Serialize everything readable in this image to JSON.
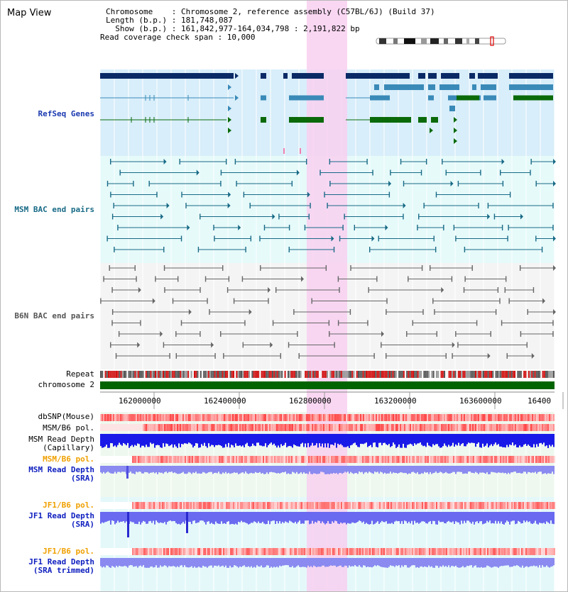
{
  "app": {
    "title": "Map View"
  },
  "info": {
    "chromosome_line": "Chromosome    : Chromosome 2, reference assembly (C57BL/6J) (Build 37)",
    "length_line": "Length (b.p.) : 181,748,087",
    "show_line": "  Show (b.p.) : 161,842,977-164,034,798 : 2,191,822 bp",
    "coverage_line": "Read coverage check span : 10,000"
  },
  "tracks": {
    "refseq": "RefSeq Genes",
    "msm_bac": "MSM BAC end pairs",
    "b6n_bac": "B6N BAC end pairs",
    "repeat": "Repeat",
    "chromosome": "chromosome 2",
    "dbsnp": "dbSNP(Mouse)",
    "msm_b6_pol_1": "MSM/B6 pol.",
    "msm_depth_cap_1": "MSM Read Depth",
    "msm_depth_cap_2": "(Capillary)",
    "msm_b6_pol_2": "MSM/B6 pol.",
    "msm_depth_sra_1": "MSM Read Depth",
    "msm_depth_sra_2": "(SRA)",
    "jf1_b6_pol_1": "JF1/B6 pol.",
    "jf1_depth_sra_1": "JF1 Read Depth",
    "jf1_depth_sra_2": "(SRA)",
    "jf1_b6_pol_2": "JF1/B6 pol.",
    "jf1_depth_trim_1": "JF1 Read Depth",
    "jf1_depth_trim_2": "(SRA trimmed)"
  },
  "axis": {
    "ticks": [
      "162000000",
      "162400000",
      "162800000",
      "163200000",
      "163600000",
      "16400"
    ]
  },
  "colors": {
    "refseq_bg": "#d8eefa",
    "bac_bg": "#e6fafa",
    "highlight": "#f8d0f0",
    "gene_dark": "#0a2a66",
    "gene_mid": "#3a8ab8",
    "gene_green": "#0a6a0a",
    "chromosome": "#006400"
  }
}
